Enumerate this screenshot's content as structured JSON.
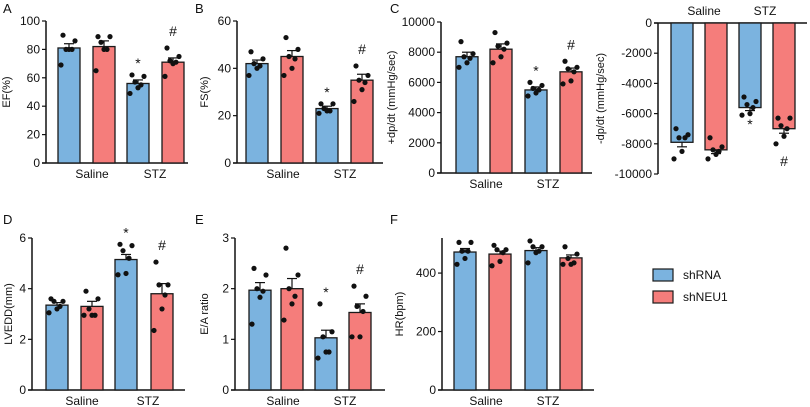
{
  "legend": [
    {
      "name": "shRNA",
      "color": "#7bb3df"
    },
    {
      "name": "shNEU1",
      "color": "#f57d7b"
    }
  ],
  "categories": [
    "Saline",
    "STZ"
  ],
  "chart_data": [
    {
      "panel": "A",
      "type": "bar",
      "ylabel": "EF(%)",
      "ylim": [
        0,
        100
      ],
      "ticks": [
        0,
        20,
        40,
        60,
        80,
        100
      ],
      "groups": [
        {
          "category": "Saline",
          "series": "shRNA",
          "mean": 81,
          "sem": 3,
          "points": [
            90,
            86,
            80,
            80,
            80,
            69
          ],
          "mark": ""
        },
        {
          "category": "Saline",
          "series": "shNEU1",
          "mean": 82,
          "sem": 4,
          "points": [
            89,
            89,
            85,
            80,
            80,
            65
          ],
          "mark": ""
        },
        {
          "category": "STZ",
          "series": "shRNA",
          "mean": 56,
          "sem": 2.5,
          "points": [
            62,
            61,
            57,
            55,
            53,
            49
          ],
          "mark": "*"
        },
        {
          "category": "STZ",
          "series": "shNEU1",
          "mean": 71,
          "sem": 3,
          "points": [
            81,
            75,
            72,
            71,
            70,
            61
          ],
          "mark": "#"
        }
      ]
    },
    {
      "panel": "B",
      "type": "bar",
      "ylabel": "FS(%)",
      "ylim": [
        0,
        60
      ],
      "ticks": [
        0,
        20,
        40,
        60
      ],
      "groups": [
        {
          "category": "Saline",
          "series": "shRNA",
          "mean": 42,
          "sem": 1.5,
          "points": [
            47,
            44,
            42,
            41,
            40,
            37
          ],
          "mark": ""
        },
        {
          "category": "Saline",
          "series": "shNEU1",
          "mean": 45,
          "sem": 2.5,
          "points": [
            53,
            48,
            45,
            44,
            40,
            37
          ],
          "mark": ""
        },
        {
          "category": "STZ",
          "series": "shRNA",
          "mean": 23,
          "sem": 1,
          "points": [
            25,
            25,
            23,
            22,
            22,
            21
          ],
          "mark": "*"
        },
        {
          "category": "STZ",
          "series": "shNEU1",
          "mean": 35,
          "sem": 2.5,
          "points": [
            41,
            37,
            35,
            34,
            31,
            26
          ],
          "mark": "#"
        }
      ]
    },
    {
      "panel": "C",
      "type": "bar",
      "ylabel": "+dp/dt (mmHg/sec)",
      "ylim": [
        0,
        10000
      ],
      "ticks": [
        0,
        2000,
        4000,
        6000,
        8000,
        10000
      ],
      "groups": [
        {
          "category": "Saline",
          "series": "shRNA",
          "mean": 7700,
          "sem": 300,
          "points": [
            8700,
            7900,
            7700,
            7600,
            7300,
            7000
          ],
          "mark": ""
        },
        {
          "category": "Saline",
          "series": "shNEU1",
          "mean": 8200,
          "sem": 350,
          "points": [
            9300,
            8600,
            8400,
            8200,
            7700,
            7300
          ],
          "mark": ""
        },
        {
          "category": "STZ",
          "series": "shRNA",
          "mean": 5500,
          "sem": 200,
          "points": [
            6000,
            5800,
            5600,
            5500,
            5300,
            5100
          ],
          "mark": "*"
        },
        {
          "category": "STZ",
          "series": "shNEU1",
          "mean": 6700,
          "sem": 250,
          "points": [
            7400,
            7000,
            6900,
            6700,
            6100,
            5900
          ],
          "mark": "#"
        }
      ]
    },
    {
      "panel": "C2",
      "type": "bar",
      "ylabel": "-dp/dt (mmHg/sec)",
      "ylim": [
        -10000,
        0
      ],
      "ticks": [
        0,
        -2000,
        -4000,
        -6000,
        -8000,
        -10000
      ],
      "category_labels_top": true,
      "groups": [
        {
          "category": "Saline",
          "series": "shRNA",
          "mean": -7900,
          "sem": 300,
          "points": [
            -7000,
            -7400,
            -7600,
            -7600,
            -8500,
            -9000
          ],
          "mark": ""
        },
        {
          "category": "Saline",
          "series": "shNEU1",
          "mean": -8400,
          "sem": 250,
          "points": [
            -7600,
            -8200,
            -8400,
            -8500,
            -8700,
            -9000
          ],
          "mark": ""
        },
        {
          "category": "STZ",
          "series": "shRNA",
          "mean": -5600,
          "sem": 200,
          "points": [
            -4900,
            -5200,
            -5400,
            -5600,
            -6000,
            -6100
          ],
          "mark": "*"
        },
        {
          "category": "STZ",
          "series": "shNEU1",
          "mean": -7000,
          "sem": 300,
          "points": [
            -6300,
            -6300,
            -6800,
            -7000,
            -7500,
            -8000
          ],
          "mark": "#"
        }
      ]
    },
    {
      "panel": "D",
      "type": "bar",
      "ylabel": "LVEDD(mm)",
      "ylim": [
        0,
        6
      ],
      "ticks": [
        0,
        2,
        4,
        6
      ],
      "groups": [
        {
          "category": "Saline",
          "series": "shRNA",
          "mean": 3.35,
          "sem": 0.1,
          "points": [
            3.6,
            3.5,
            3.5,
            3.3,
            3.2,
            3.05
          ],
          "mark": ""
        },
        {
          "category": "Saline",
          "series": "shNEU1",
          "mean": 3.3,
          "sem": 0.2,
          "points": [
            3.9,
            3.6,
            3.2,
            2.95,
            2.95,
            2.95
          ],
          "mark": ""
        },
        {
          "category": "STZ",
          "series": "shRNA",
          "mean": 5.15,
          "sem": 0.2,
          "points": [
            5.75,
            5.7,
            5.5,
            5.2,
            4.6,
            4.55
          ],
          "mark": "*"
        },
        {
          "category": "STZ",
          "series": "shNEU1",
          "mean": 3.8,
          "sem": 0.4,
          "points": [
            5.05,
            4.15,
            4.15,
            3.75,
            3.2,
            2.35
          ],
          "mark": "#"
        }
      ]
    },
    {
      "panel": "E",
      "type": "bar",
      "ylabel": "E/A ratio",
      "ylim": [
        0,
        3
      ],
      "ticks": [
        0,
        1,
        2,
        3
      ],
      "groups": [
        {
          "category": "Saline",
          "series": "shRNA",
          "mean": 1.97,
          "sem": 0.15,
          "points": [
            2.4,
            2.27,
            2.0,
            1.95,
            1.83,
            1.3
          ],
          "mark": ""
        },
        {
          "category": "Saline",
          "series": "shNEU1",
          "mean": 2.0,
          "sem": 0.2,
          "points": [
            2.8,
            2.27,
            2.0,
            1.85,
            1.7,
            1.38
          ],
          "mark": ""
        },
        {
          "category": "STZ",
          "series": "shRNA",
          "mean": 1.03,
          "sem": 0.15,
          "points": [
            1.7,
            1.15,
            1.05,
            0.75,
            0.75,
            0.63
          ],
          "mark": "*"
        },
        {
          "category": "STZ",
          "series": "shNEU1",
          "mean": 1.53,
          "sem": 0.17,
          "points": [
            2.05,
            1.85,
            1.65,
            1.55,
            1.05,
            1.05
          ],
          "mark": "#"
        }
      ]
    },
    {
      "panel": "F",
      "type": "bar",
      "ylabel": "HR(bpm)",
      "ylim": [
        0,
        520
      ],
      "ticks": [
        0,
        200,
        400
      ],
      "groups": [
        {
          "category": "Saline",
          "series": "shRNA",
          "mean": 472,
          "sem": 12,
          "points": [
            505,
            505,
            475,
            475,
            450,
            430
          ],
          "mark": ""
        },
        {
          "category": "Saline",
          "series": "shNEU1",
          "mean": 465,
          "sem": 10,
          "points": [
            495,
            480,
            480,
            470,
            440,
            425
          ],
          "mark": ""
        },
        {
          "category": "STZ",
          "series": "shRNA",
          "mean": 477,
          "sem": 10,
          "points": [
            510,
            490,
            490,
            475,
            470,
            435
          ],
          "mark": ""
        },
        {
          "category": "STZ",
          "series": "shNEU1",
          "mean": 452,
          "sem": 10,
          "points": [
            490,
            465,
            450,
            435,
            430,
            430
          ],
          "mark": ""
        }
      ]
    }
  ]
}
